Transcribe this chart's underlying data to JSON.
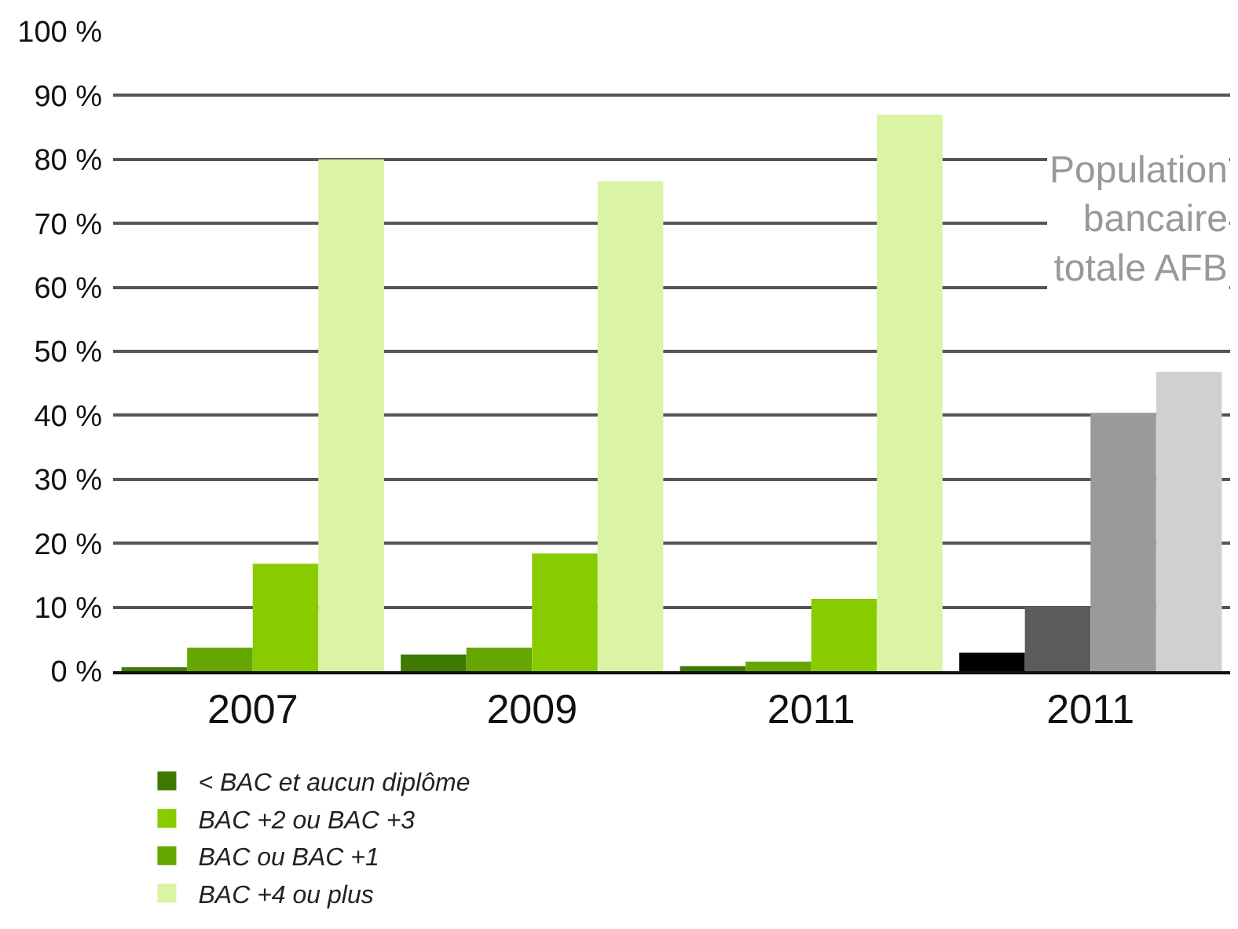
{
  "chart_data": {
    "type": "bar",
    "categories": [
      "2007",
      "2009",
      "2011",
      "2011"
    ],
    "series": [
      {
        "name": "< BAC et aucun diplôme",
        "color": "#3f7a00",
        "colors": [
          null,
          null,
          null,
          "#000000"
        ],
        "values": [
          0.6,
          2.6,
          0.8,
          2.9
        ]
      },
      {
        "name": "BAC ou BAC +1",
        "color": "#66a600",
        "colors": [
          null,
          null,
          null,
          "#5c5c5b"
        ],
        "values": [
          3.7,
          3.7,
          1.5,
          10.1
        ]
      },
      {
        "name": "BAC +2 ou BAC +3",
        "color": "#88cc00",
        "colors": [
          null,
          null,
          null,
          "#999a99"
        ],
        "values": [
          16.8,
          18.4,
          11.3,
          40.4
        ]
      },
      {
        "name": "BAC +4 ou plus",
        "color": "#daf3a4",
        "colors": [
          null,
          null,
          null,
          "#d0d0d0"
        ],
        "values": [
          80,
          76.6,
          87,
          46.8
        ]
      }
    ],
    "ylim": [
      0,
      100
    ],
    "yticks": [
      {
        "value": 0,
        "label": "0 %"
      },
      {
        "value": 10,
        "label": "10 %"
      },
      {
        "value": 20,
        "label": "20 %"
      },
      {
        "value": 30,
        "label": "30 %"
      },
      {
        "value": 40,
        "label": "40 %"
      },
      {
        "value": 50,
        "label": "50 %"
      },
      {
        "value": 60,
        "label": "60 %"
      },
      {
        "value": 70,
        "label": "70 %"
      },
      {
        "value": 80,
        "label": "80 %"
      },
      {
        "value": 90,
        "label": "90 %"
      },
      {
        "value": 100,
        "label": "100 %"
      }
    ],
    "grid": "y",
    "legend": "bottom",
    "annotations": [
      "Population\nbancaire\ntotale AFB"
    ]
  }
}
